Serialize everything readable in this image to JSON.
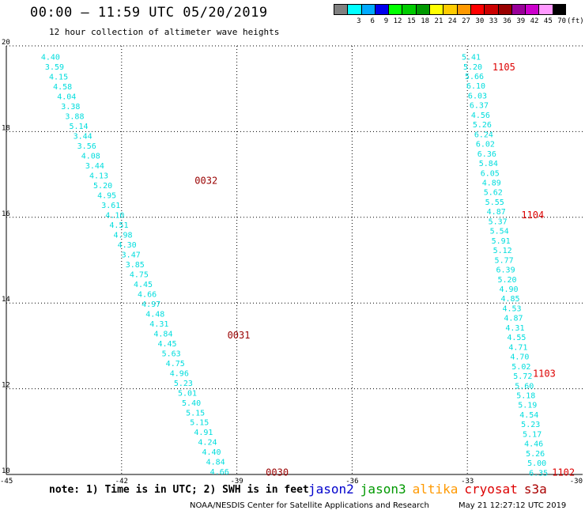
{
  "title": "00:00 – 11:59 UTC 05/20/2019",
  "subtitle": "12 hour collection of altimeter wave heights",
  "legend": {
    "colors": [
      "#808080",
      "#00ffff",
      "#00aaff",
      "#0000ee",
      "#00ff00",
      "#00cc00",
      "#009900",
      "#ffff00",
      "#ffcc00",
      "#ff9900",
      "#ff0000",
      "#cc0000",
      "#990000",
      "#990099",
      "#cc00cc",
      "#ff99ff",
      "#000000"
    ],
    "labels": [
      "",
      "3",
      "6",
      "9",
      "12",
      "15",
      "18",
      "21",
      "24",
      "27",
      "30",
      "33",
      "36",
      "39",
      "42",
      "45",
      "70"
    ],
    "unit": "(ft)"
  },
  "note": "note: 1) Time is in UTC; 2) SWH is in feet",
  "satellites": [
    {
      "name": "jason2",
      "color": "#0000cc"
    },
    {
      "name": "jason3",
      "color": "#009900"
    },
    {
      "name": "altika",
      "color": "#ff9900"
    },
    {
      "name": "cryosat",
      "color": "#dd0000"
    },
    {
      "name": "s3a",
      "color": "#aa0000"
    }
  ],
  "credit": "NOAA/NESDIS Center for Satellite Applications and Research",
  "timestamp": "May 21 12:27:12 UTC 2019",
  "chart_data": {
    "type": "scatter",
    "xlim": [
      -45,
      -30
    ],
    "ylim": [
      10,
      20
    ],
    "xticks": [
      "-45",
      "-42",
      "-39",
      "-36",
      "-33",
      "-30"
    ],
    "yticks": [
      "10",
      "12",
      "14",
      "16",
      "18",
      "20"
    ],
    "grid": true,
    "value_color": "#00dddd",
    "time_color_west": "#990000",
    "time_color_east": "#dd0000",
    "tracks": [
      {
        "start_lon": -39.45,
        "start_lat": 10.07,
        "end_lon": -43.85,
        "end_lat": 19.75,
        "values": [
          "4.66",
          "4.84",
          "4.40",
          "4.24",
          "4.91",
          "5.15",
          "5.15",
          "5.40",
          "5.01",
          "5.23",
          "4.96",
          "4.75",
          "5.63",
          "4.45",
          "4.84",
          "4.31",
          "4.48",
          "4.97",
          "4.66",
          "4.45",
          "4.75",
          "3.85",
          "3.47",
          "4.30",
          "4.98",
          "4.51",
          "4.10",
          "3.61",
          "4.95",
          "5.20",
          "4.13",
          "3.44",
          "4.08",
          "3.56",
          "3.44",
          "5.14",
          "3.88",
          "3.38",
          "4.04",
          "4.58",
          "4.15",
          "3.59",
          "4.40"
        ],
        "times": [
          {
            "label": "0030",
            "lat": 10.05,
            "lon": -37.95
          },
          {
            "label": "0031",
            "lat": 13.25,
            "lon": -38.95
          },
          {
            "label": "0032",
            "lat": 16.85,
            "lon": -39.8
          }
        ]
      },
      {
        "start_lon": -31.15,
        "start_lat": 10.05,
        "end_lon": -32.9,
        "end_lat": 19.75,
        "values": [
          "6.35",
          "5.00",
          "5.26",
          "4.46",
          "5.17",
          "5.23",
          "4.54",
          "5.19",
          "5.18",
          "5.60",
          "5.72",
          "5.02",
          "4.70",
          "4.71",
          "4.55",
          "4.31",
          "4.87",
          "4.53",
          "4.85",
          "4.90",
          "5.20",
          "6.39",
          "5.77",
          "5.12",
          "5.91",
          "5.54",
          "5.37",
          "4.87",
          "5.55",
          "5.62",
          "4.89",
          "6.05",
          "5.84",
          "6.36",
          "6.02",
          "6.24",
          "5.26",
          "4.56",
          "6.37",
          "6.03",
          "6.10",
          "5.66",
          "5.20",
          "5.41"
        ],
        "times": [
          {
            "label": "1102",
            "lat": 10.05,
            "lon": -30.5
          },
          {
            "label": "1103",
            "lat": 12.35,
            "lon": -31.0
          },
          {
            "label": "1104",
            "lat": 16.05,
            "lon": -31.3
          },
          {
            "label": "1105",
            "lat": 19.5,
            "lon": -32.05
          }
        ]
      }
    ]
  }
}
